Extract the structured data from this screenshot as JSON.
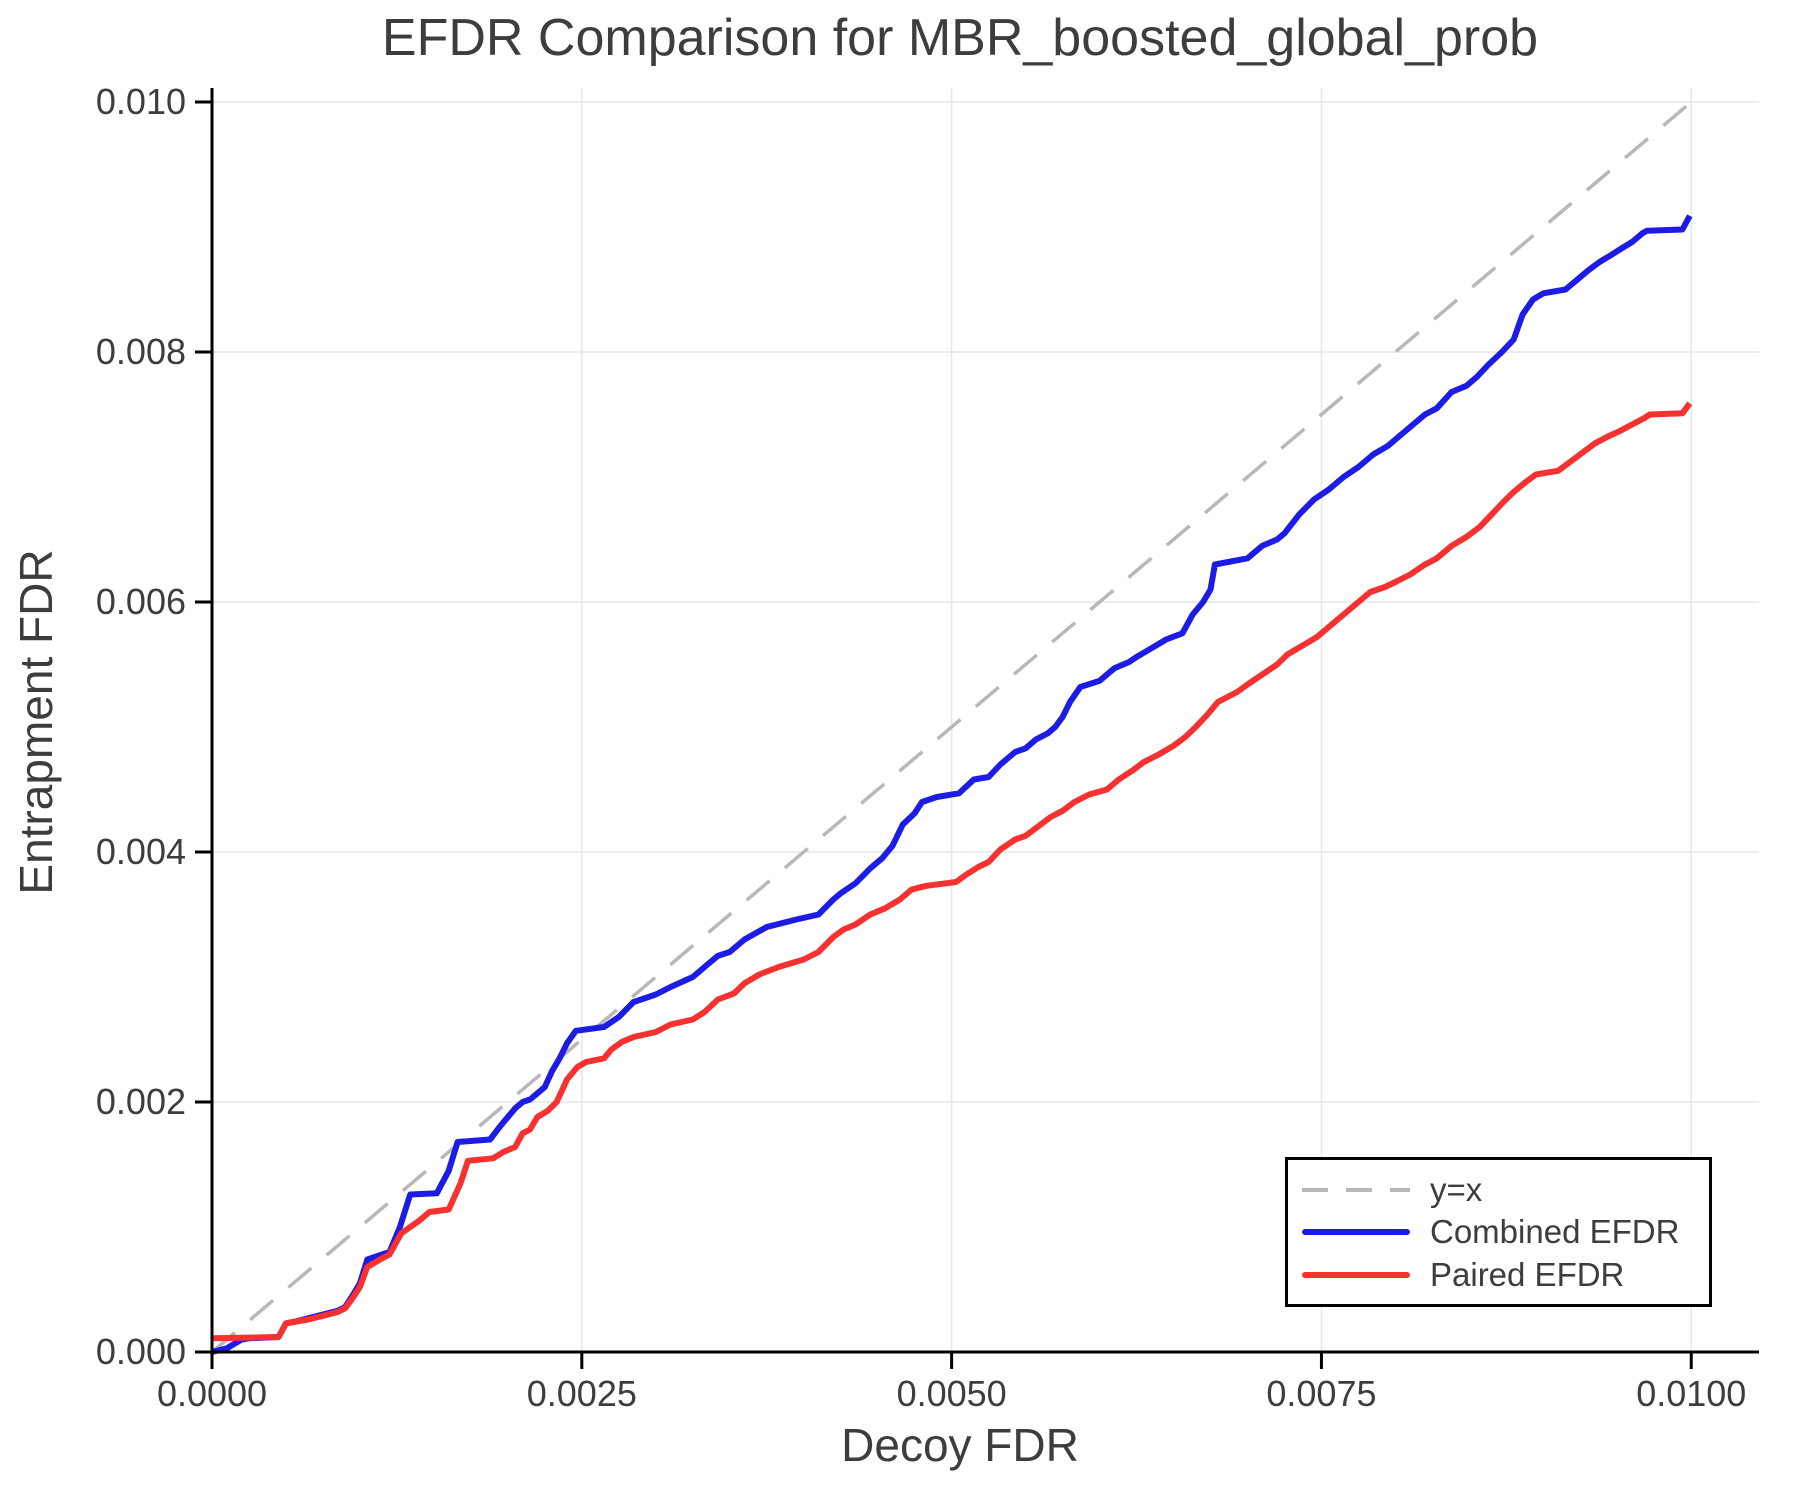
{
  "chart_data": {
    "type": "line",
    "title": "EFDR Comparison for MBR_boosted_global_prob",
    "xlabel": "Decoy FDR",
    "ylabel": "Entrapment FDR",
    "xlim": [
      0,
      0.010458
    ],
    "ylim": [
      0,
      0.010112
    ],
    "grid": true,
    "legend_position": "lower right",
    "point_unit": 0.0001,
    "x_ticks": [
      {
        "v": 0,
        "label": "0.0000"
      },
      {
        "v": 25,
        "label": "0.0025"
      },
      {
        "v": 50,
        "label": "0.0050"
      },
      {
        "v": 75,
        "label": "0.0075"
      },
      {
        "v": 100,
        "label": "0.0100"
      }
    ],
    "y_ticks": [
      {
        "v": 0,
        "label": "0.000"
      },
      {
        "v": 20,
        "label": "0.002"
      },
      {
        "v": 40,
        "label": "0.004"
      },
      {
        "v": 60,
        "label": "0.006"
      },
      {
        "v": 80,
        "label": "0.008"
      },
      {
        "v": 100,
        "label": "0.010"
      }
    ],
    "style": {
      "grid_color": "#e7e7e7",
      "spine_color": "#000000",
      "text_color": "#3d3d3d",
      "ref_color": "#b8b8b8",
      "combined_color": "#1c1ce6",
      "paired_color": "#f73030"
    },
    "series": [
      {
        "name": "y=x",
        "color": "#b8b8b8",
        "style": "dashed",
        "points_e4": [
          [
            0,
            0
          ],
          [
            100,
            100
          ]
        ]
      },
      {
        "name": "Combined EFDR",
        "color": "#1c1ce6",
        "style": "solid",
        "points_e4": [
          [
            0,
            0
          ],
          [
            1,
            0.3
          ],
          [
            2,
            1.0
          ],
          [
            2.5,
            1.1
          ],
          [
            4.5,
            1.2
          ],
          [
            5,
            2.3
          ],
          [
            5.5,
            2.4
          ],
          [
            6.5,
            2.7
          ],
          [
            7.5,
            3.0
          ],
          [
            8.5,
            3.3
          ],
          [
            9,
            3.6
          ],
          [
            9.5,
            4.5
          ],
          [
            10,
            5.5
          ],
          [
            10.5,
            7.4
          ],
          [
            11.5,
            7.8
          ],
          [
            12,
            8.0
          ],
          [
            12.7,
            10.0
          ],
          [
            13.4,
            12.6
          ],
          [
            15.2,
            12.7
          ],
          [
            16,
            14.5
          ],
          [
            16.6,
            16.8
          ],
          [
            18.8,
            17.0
          ],
          [
            19.5,
            18.1
          ],
          [
            20.5,
            19.5
          ],
          [
            21,
            20.0
          ],
          [
            21.5,
            20.2
          ],
          [
            22,
            20.7
          ],
          [
            22.5,
            21.2
          ],
          [
            23,
            22.5
          ],
          [
            23.5,
            23.5
          ],
          [
            24,
            24.7
          ],
          [
            24.6,
            25.7
          ],
          [
            26.5,
            26.0
          ],
          [
            27.5,
            26.8
          ],
          [
            28.5,
            28.0
          ],
          [
            30,
            28.6
          ],
          [
            31,
            29.2
          ],
          [
            32.5,
            30.0
          ],
          [
            33.5,
            31.0
          ],
          [
            34.2,
            31.7
          ],
          [
            35,
            32.0
          ],
          [
            36,
            33.0
          ],
          [
            37.5,
            34.0
          ],
          [
            39.5,
            34.6
          ],
          [
            41,
            35.0
          ],
          [
            42,
            36.2
          ],
          [
            42.5,
            36.7
          ],
          [
            43.5,
            37.5
          ],
          [
            44.5,
            38.7
          ],
          [
            45.3,
            39.5
          ],
          [
            46,
            40.5
          ],
          [
            46.7,
            42.2
          ],
          [
            47.5,
            43.1
          ],
          [
            48,
            44.0
          ],
          [
            49,
            44.4
          ],
          [
            50.5,
            44.7
          ],
          [
            51.5,
            45.8
          ],
          [
            52.5,
            46.0
          ],
          [
            53.3,
            47.0
          ],
          [
            54.3,
            48.0
          ],
          [
            55,
            48.3
          ],
          [
            55.7,
            49.0
          ],
          [
            56.5,
            49.5
          ],
          [
            57,
            50.0
          ],
          [
            57.5,
            50.8
          ],
          [
            58,
            52.0
          ],
          [
            58.7,
            53.2
          ],
          [
            60,
            53.7
          ],
          [
            61,
            54.7
          ],
          [
            62,
            55.2
          ],
          [
            62.5,
            55.6
          ],
          [
            63.5,
            56.3
          ],
          [
            64.5,
            57.0
          ],
          [
            65.6,
            57.5
          ],
          [
            66.3,
            59.0
          ],
          [
            67,
            60.0
          ],
          [
            67.5,
            61.0
          ],
          [
            67.8,
            63.0
          ],
          [
            70,
            63.5
          ],
          [
            71,
            64.5
          ],
          [
            72,
            65.0
          ],
          [
            72.5,
            65.5
          ],
          [
            73.5,
            67.0
          ],
          [
            74.5,
            68.2
          ],
          [
            75.5,
            69.0
          ],
          [
            76.5,
            70.0
          ],
          [
            77.5,
            70.8
          ],
          [
            78.5,
            71.8
          ],
          [
            79.5,
            72.5
          ],
          [
            80,
            73.0
          ],
          [
            81,
            74.0
          ],
          [
            82,
            75.0
          ],
          [
            82.8,
            75.5
          ],
          [
            83.8,
            76.8
          ],
          [
            84.8,
            77.3
          ],
          [
            85.5,
            78.0
          ],
          [
            86.3,
            79.0
          ],
          [
            87.2,
            80.0
          ],
          [
            88,
            81.0
          ],
          [
            88.6,
            83.0
          ],
          [
            89.3,
            84.2
          ],
          [
            90,
            84.7
          ],
          [
            91.5,
            85.0
          ],
          [
            92.2,
            85.7
          ],
          [
            93,
            86.5
          ],
          [
            93.8,
            87.2
          ],
          [
            94.5,
            87.7
          ],
          [
            95.3,
            88.3
          ],
          [
            96,
            88.8
          ],
          [
            96.7,
            89.5
          ],
          [
            97,
            89.7
          ],
          [
            99.4,
            89.8
          ],
          [
            99.9,
            90.9
          ]
        ]
      },
      {
        "name": "Paired EFDR",
        "color": "#f73030",
        "style": "solid",
        "points_e4": [
          [
            0,
            1.1
          ],
          [
            4.5,
            1.2
          ],
          [
            5,
            2.3
          ],
          [
            5.5,
            2.4
          ],
          [
            6.5,
            2.6
          ],
          [
            7.5,
            2.9
          ],
          [
            8.5,
            3.2
          ],
          [
            9,
            3.5
          ],
          [
            9.5,
            4.3
          ],
          [
            10,
            5.2
          ],
          [
            10.5,
            6.8
          ],
          [
            11.5,
            7.5
          ],
          [
            12,
            7.8
          ],
          [
            12.8,
            9.5
          ],
          [
            14,
            10.5
          ],
          [
            14.7,
            11.2
          ],
          [
            16,
            11.4
          ],
          [
            16.8,
            13.5
          ],
          [
            17.3,
            15.3
          ],
          [
            19,
            15.5
          ],
          [
            19.7,
            16.0
          ],
          [
            20.5,
            16.4
          ],
          [
            21,
            17.5
          ],
          [
            21.5,
            17.8
          ],
          [
            22,
            18.8
          ],
          [
            22.7,
            19.3
          ],
          [
            23.3,
            20.0
          ],
          [
            24,
            21.8
          ],
          [
            24.7,
            22.8
          ],
          [
            25.3,
            23.2
          ],
          [
            26.5,
            23.5
          ],
          [
            27,
            24.2
          ],
          [
            27.7,
            24.8
          ],
          [
            28.5,
            25.2
          ],
          [
            30,
            25.6
          ],
          [
            31,
            26.2
          ],
          [
            32.5,
            26.6
          ],
          [
            33.3,
            27.2
          ],
          [
            34.2,
            28.2
          ],
          [
            35.3,
            28.7
          ],
          [
            36,
            29.5
          ],
          [
            37,
            30.2
          ],
          [
            38.3,
            30.8
          ],
          [
            40,
            31.4
          ],
          [
            41,
            32.0
          ],
          [
            42,
            33.2
          ],
          [
            42.7,
            33.8
          ],
          [
            43.5,
            34.2
          ],
          [
            44.5,
            35.0
          ],
          [
            45.5,
            35.5
          ],
          [
            46.5,
            36.2
          ],
          [
            47.3,
            37.0
          ],
          [
            48.3,
            37.3
          ],
          [
            50.3,
            37.6
          ],
          [
            51,
            38.2
          ],
          [
            51.8,
            38.8
          ],
          [
            52.5,
            39.2
          ],
          [
            53.3,
            40.2
          ],
          [
            54.3,
            41.0
          ],
          [
            55,
            41.3
          ],
          [
            55.8,
            42.0
          ],
          [
            56.7,
            42.8
          ],
          [
            57.5,
            43.3
          ],
          [
            58.3,
            44.0
          ],
          [
            59.3,
            44.6
          ],
          [
            60.5,
            45.0
          ],
          [
            61.3,
            45.8
          ],
          [
            62.2,
            46.5
          ],
          [
            63,
            47.2
          ],
          [
            64,
            47.8
          ],
          [
            65,
            48.5
          ],
          [
            65.8,
            49.2
          ],
          [
            66.5,
            50.0
          ],
          [
            67.3,
            51.0
          ],
          [
            68,
            52.0
          ],
          [
            69.3,
            52.8
          ],
          [
            70,
            53.4
          ],
          [
            71,
            54.2
          ],
          [
            72,
            55.0
          ],
          [
            72.7,
            55.8
          ],
          [
            73.7,
            56.5
          ],
          [
            74.7,
            57.2
          ],
          [
            75.5,
            58.0
          ],
          [
            76.5,
            59.0
          ],
          [
            77.3,
            59.8
          ],
          [
            78.3,
            60.8
          ],
          [
            79.3,
            61.2
          ],
          [
            80,
            61.6
          ],
          [
            81,
            62.2
          ],
          [
            82,
            63.0
          ],
          [
            82.8,
            63.5
          ],
          [
            83.8,
            64.5
          ],
          [
            84.8,
            65.2
          ],
          [
            85.7,
            66.0
          ],
          [
            86.5,
            67.0
          ],
          [
            87.3,
            68.0
          ],
          [
            88,
            68.8
          ],
          [
            88.7,
            69.5
          ],
          [
            89.5,
            70.2
          ],
          [
            91,
            70.5
          ],
          [
            91.8,
            71.2
          ],
          [
            92.7,
            72.0
          ],
          [
            93.5,
            72.7
          ],
          [
            94.3,
            73.2
          ],
          [
            95.2,
            73.7
          ],
          [
            96,
            74.2
          ],
          [
            96.8,
            74.7
          ],
          [
            97.2,
            75.0
          ],
          [
            99.4,
            75.1
          ],
          [
            99.9,
            75.9
          ]
        ]
      }
    ]
  }
}
